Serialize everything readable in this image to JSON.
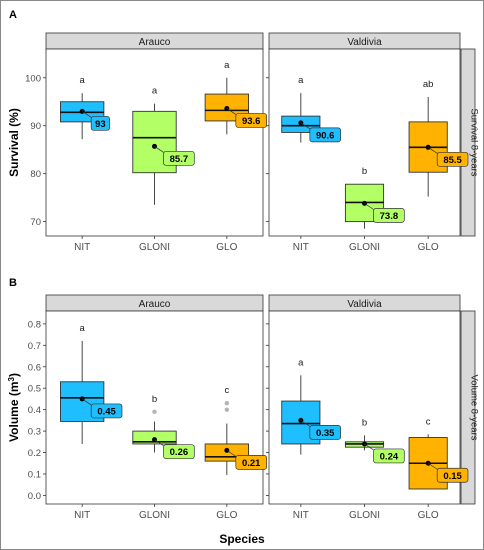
{
  "figure": {
    "xlabel": "Species",
    "panel_labels": [
      "A",
      "B"
    ]
  },
  "chart_data": [
    {
      "type": "box",
      "panel": "A",
      "ylabel": "Survival (%)",
      "strip_right": "Survival 8-years",
      "ylim": [
        67,
        106
      ],
      "yticks": [
        70,
        80,
        90,
        100
      ],
      "categories": [
        "NIT",
        "GLONI",
        "GLO"
      ],
      "colors": [
        "#1fbfff",
        "#b2ff66",
        "#ffb300"
      ],
      "facets": [
        {
          "site": "Arauco",
          "boxes": [
            {
              "species": "NIT",
              "min": 87.2,
              "q1": 90.8,
              "median": 92.8,
              "q3": 95.0,
              "max": 96.8,
              "mean": 93.0,
              "mean_label": "93",
              "letter": "a",
              "outliers": []
            },
            {
              "species": "GLONI",
              "min": 73.5,
              "q1": 80.2,
              "median": 87.5,
              "q3": 93.0,
              "max": 94.6,
              "mean": 85.7,
              "mean_label": "85.7",
              "letter": "a",
              "outliers": []
            },
            {
              "species": "GLO",
              "min": 88.2,
              "q1": 91.0,
              "median": 93.2,
              "q3": 96.6,
              "max": 100.0,
              "mean": 93.6,
              "mean_label": "93.6",
              "letter": "a",
              "outliers": []
            }
          ]
        },
        {
          "site": "Valdivia",
          "boxes": [
            {
              "species": "NIT",
              "min": 86.5,
              "q1": 88.6,
              "median": 90.0,
              "q3": 92.0,
              "max": 96.8,
              "mean": 90.6,
              "mean_label": "90.6",
              "letter": "a",
              "outliers": []
            },
            {
              "species": "GLONI",
              "min": 68.5,
              "q1": 70.0,
              "median": 74.0,
              "q3": 77.8,
              "max": 77.8,
              "mean": 73.8,
              "mean_label": "73.8",
              "letter": "b",
              "outliers": []
            },
            {
              "species": "GLO",
              "min": 75.2,
              "q1": 80.3,
              "median": 85.5,
              "q3": 90.8,
              "max": 96.0,
              "mean": 85.5,
              "mean_label": "85.5",
              "letter": "ab",
              "outliers": []
            }
          ]
        }
      ]
    },
    {
      "type": "box",
      "panel": "B",
      "ylabel_prefix": "Volume (m",
      "ylabel_sup": "3",
      "ylabel_suffix": ")",
      "strip_right": "Volume 8-years",
      "ylim": [
        -0.04,
        0.86
      ],
      "yticks": [
        0.0,
        0.1,
        0.2,
        0.3,
        0.4,
        0.5,
        0.6,
        0.7,
        0.8
      ],
      "ytick_labels": [
        "0.0",
        "0.1",
        "0.2",
        "0.3",
        "0.4",
        "0.5",
        "0.6",
        "0.7",
        "0.8"
      ],
      "categories": [
        "NIT",
        "GLONI",
        "GLO"
      ],
      "colors": [
        "#1fbfff",
        "#b2ff66",
        "#ffb300"
      ],
      "facets": [
        {
          "site": "Arauco",
          "boxes": [
            {
              "species": "NIT",
              "min": 0.24,
              "q1": 0.345,
              "median": 0.455,
              "q3": 0.53,
              "max": 0.72,
              "mean": 0.45,
              "mean_label": "0.45",
              "letter": "a",
              "outliers": []
            },
            {
              "species": "GLONI",
              "min": 0.2,
              "q1": 0.24,
              "median": 0.25,
              "q3": 0.3,
              "max": 0.345,
              "mean": 0.26,
              "mean_label": "0.26",
              "letter": "b",
              "outliers": [
                0.39
              ]
            },
            {
              "species": "GLO",
              "min": 0.095,
              "q1": 0.16,
              "median": 0.18,
              "q3": 0.24,
              "max": 0.335,
              "mean": 0.21,
              "mean_label": "0.21",
              "letter": "c",
              "outliers": [
                0.4,
                0.43
              ]
            }
          ]
        },
        {
          "site": "Valdivia",
          "boxes": [
            {
              "species": "NIT",
              "min": 0.19,
              "q1": 0.24,
              "median": 0.335,
              "q3": 0.44,
              "max": 0.56,
              "mean": 0.35,
              "mean_label": "0.35",
              "letter": "a",
              "outliers": []
            },
            {
              "species": "GLONI",
              "min": 0.21,
              "q1": 0.225,
              "median": 0.24,
              "q3": 0.25,
              "max": 0.28,
              "mean": 0.24,
              "mean_label": "0.24",
              "letter": "b",
              "outliers": []
            },
            {
              "species": "GLO",
              "min": 0.03,
              "q1": 0.03,
              "median": 0.15,
              "q3": 0.27,
              "max": 0.285,
              "mean": 0.15,
              "mean_label": "0.15",
              "letter": "c",
              "outliers": []
            }
          ]
        }
      ]
    }
  ]
}
